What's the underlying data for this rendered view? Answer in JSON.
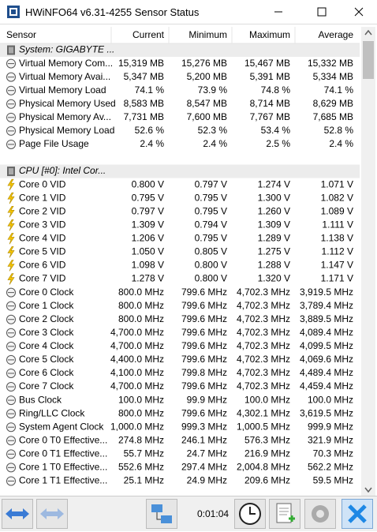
{
  "window": {
    "title": "HWiNFO64 v6.31-4255 Sensor Status"
  },
  "table": {
    "columns": [
      "Sensor",
      "Current",
      "Minimum",
      "Maximum",
      "Average"
    ],
    "groups": [
      {
        "title": "System: GIGABYTE ...",
        "rows": [
          [
            "Virtual Memory Com...",
            "15,319 MB",
            "15,276 MB",
            "15,467 MB",
            "15,332 MB"
          ],
          [
            "Virtual Memory Avai...",
            "5,347 MB",
            "5,200 MB",
            "5,391 MB",
            "5,334 MB"
          ],
          [
            "Virtual Memory Load",
            "74.1 %",
            "73.9 %",
            "74.8 %",
            "74.1 %"
          ],
          [
            "Physical Memory Used",
            "8,583 MB",
            "8,547 MB",
            "8,714 MB",
            "8,629 MB"
          ],
          [
            "Physical Memory Av...",
            "7,731 MB",
            "7,600 MB",
            "7,767 MB",
            "7,685 MB"
          ],
          [
            "Physical Memory Load",
            "52.6 %",
            "52.3 %",
            "53.4 %",
            "52.8 %"
          ],
          [
            "Page File Usage",
            "2.4 %",
            "2.4 %",
            "2.5 %",
            "2.4 %"
          ]
        ]
      },
      {
        "title": "CPU [#0]: Intel Cor...",
        "rows": [
          [
            "Core 0 VID",
            "0.800 V",
            "0.797 V",
            "1.274 V",
            "1.071 V"
          ],
          [
            "Core 1 VID",
            "0.795 V",
            "0.795 V",
            "1.300 V",
            "1.082 V"
          ],
          [
            "Core 2 VID",
            "0.797 V",
            "0.795 V",
            "1.260 V",
            "1.089 V"
          ],
          [
            "Core 3 VID",
            "1.309 V",
            "0.794 V",
            "1.309 V",
            "1.111 V"
          ],
          [
            "Core 4 VID",
            "1.206 V",
            "0.795 V",
            "1.289 V",
            "1.138 V"
          ],
          [
            "Core 5 VID",
            "1.050 V",
            "0.805 V",
            "1.275 V",
            "1.112 V"
          ],
          [
            "Core 6 VID",
            "1.098 V",
            "0.800 V",
            "1.288 V",
            "1.147 V"
          ],
          [
            "Core 7 VID",
            "1.278 V",
            "0.800 V",
            "1.320 V",
            "1.171 V"
          ],
          [
            "Core 0 Clock",
            "800.0 MHz",
            "799.6 MHz",
            "4,702.3 MHz",
            "3,919.5 MHz"
          ],
          [
            "Core 1 Clock",
            "800.0 MHz",
            "799.6 MHz",
            "4,702.3 MHz",
            "3,789.4 MHz"
          ],
          [
            "Core 2 Clock",
            "800.0 MHz",
            "799.6 MHz",
            "4,702.3 MHz",
            "3,889.5 MHz"
          ],
          [
            "Core 3 Clock",
            "4,700.0 MHz",
            "799.6 MHz",
            "4,702.3 MHz",
            "4,089.4 MHz"
          ],
          [
            "Core 4 Clock",
            "4,700.0 MHz",
            "799.6 MHz",
            "4,702.3 MHz",
            "4,099.5 MHz"
          ],
          [
            "Core 5 Clock",
            "4,400.0 MHz",
            "799.6 MHz",
            "4,702.3 MHz",
            "4,069.6 MHz"
          ],
          [
            "Core 6 Clock",
            "4,100.0 MHz",
            "799.8 MHz",
            "4,702.3 MHz",
            "4,489.4 MHz"
          ],
          [
            "Core 7 Clock",
            "4,700.0 MHz",
            "799.6 MHz",
            "4,702.3 MHz",
            "4,459.4 MHz"
          ],
          [
            "Bus Clock",
            "100.0 MHz",
            "99.9 MHz",
            "100.0 MHz",
            "100.0 MHz"
          ],
          [
            "Ring/LLC Clock",
            "800.0 MHz",
            "799.6 MHz",
            "4,302.1 MHz",
            "3,619.5 MHz"
          ],
          [
            "System Agent Clock",
            "1,000.0 MHz",
            "999.3 MHz",
            "1,000.5 MHz",
            "999.9 MHz"
          ],
          [
            "Core 0 T0 Effective...",
            "274.8 MHz",
            "246.1 MHz",
            "576.3 MHz",
            "321.9 MHz"
          ],
          [
            "Core 0 T1 Effective...",
            "55.7 MHz",
            "24.7 MHz",
            "216.9 MHz",
            "70.3 MHz"
          ],
          [
            "Core 1 T0 Effective...",
            "552.6 MHz",
            "297.4 MHz",
            "2,004.8 MHz",
            "562.2 MHz"
          ],
          [
            "Core 1 T1 Effective...",
            "25.1 MHz",
            "24.9 MHz",
            "209.6 MHz",
            "59.5 MHz"
          ]
        ]
      }
    ]
  },
  "toolbar": {
    "timer": "0:01:04"
  }
}
